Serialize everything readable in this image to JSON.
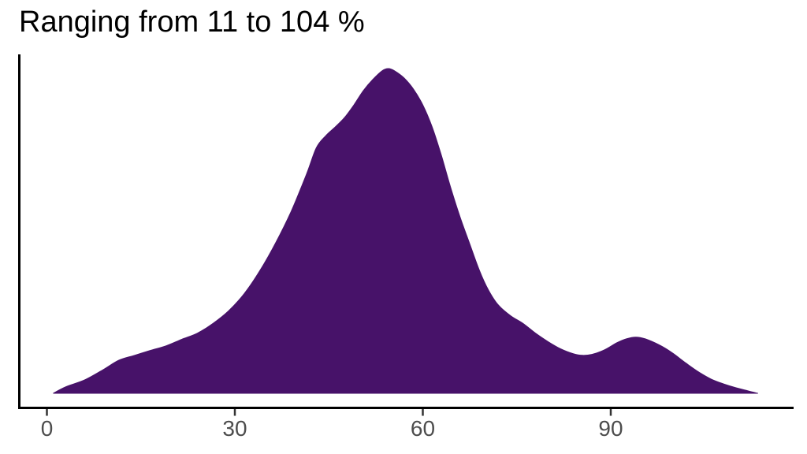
{
  "chart": {
    "title": "Ranging from 11 to 104 %"
  },
  "chart_data": {
    "type": "area",
    "variant": "kernel-density",
    "title": "Ranging from 11 to 104 %",
    "xlabel": "",
    "ylabel": "",
    "x_ticks": [
      0,
      30,
      60,
      90
    ],
    "x_tick_labels": [
      "0",
      "30",
      "60",
      "90"
    ],
    "xlim": [
      -4.6,
      119.2
    ],
    "y_units": "relative density (0 = baseline, 1 = peak)",
    "ylim": [
      0,
      1.09
    ],
    "grid": false,
    "legend": "none",
    "data_range_label": {
      "min_pct": 11,
      "max_pct": 104
    },
    "series": [
      {
        "name": "density",
        "x": [
          1,
          3,
          6,
          9,
          11.5,
          14,
          16.5,
          19,
          21.5,
          24,
          26.5,
          29,
          31.5,
          34,
          36.5,
          39,
          41.5,
          43,
          44.5,
          46,
          47.5,
          49,
          50.5,
          52,
          53.5,
          54.5,
          55.5,
          57,
          58.5,
          60,
          61.5,
          63,
          64.5,
          66,
          67.5,
          69,
          70.5,
          72,
          74,
          76,
          78,
          80,
          82,
          84,
          85.5,
          87,
          89,
          91,
          92.5,
          94,
          95.5,
          97,
          98.5,
          100,
          102,
          104,
          106,
          108,
          110,
          112,
          113.5
        ],
        "y_rel": [
          0,
          0.02,
          0.041,
          0.073,
          0.102,
          0.117,
          0.132,
          0.146,
          0.166,
          0.185,
          0.215,
          0.254,
          0.307,
          0.378,
          0.463,
          0.561,
          0.678,
          0.756,
          0.793,
          0.82,
          0.849,
          0.888,
          0.932,
          0.966,
          0.993,
          1,
          0.993,
          0.971,
          0.937,
          0.888,
          0.82,
          0.73,
          0.63,
          0.54,
          0.46,
          0.38,
          0.317,
          0.273,
          0.239,
          0.215,
          0.185,
          0.159,
          0.137,
          0.122,
          0.117,
          0.12,
          0.134,
          0.156,
          0.168,
          0.173,
          0.168,
          0.156,
          0.141,
          0.122,
          0.093,
          0.066,
          0.044,
          0.029,
          0.017,
          0.007,
          0
        ]
      }
    ],
    "colors": {
      "fill": "#471269",
      "axis_line": "#000000",
      "tick_mark": "#333333",
      "tick_label": "#4d4d4d",
      "title": "#000000",
      "background": "#ffffff"
    }
  }
}
